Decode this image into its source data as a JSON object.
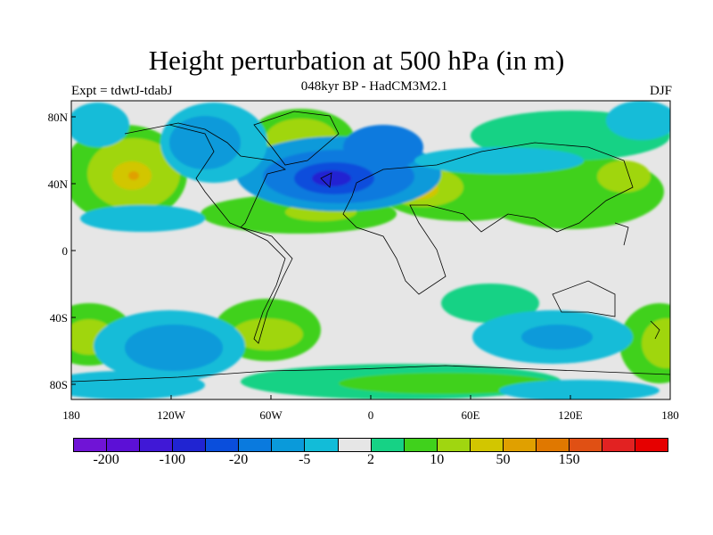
{
  "title": "Height perturbation at 500 hPa (in m)",
  "subtitle": "048kyr BP - HadCM3M2.1",
  "left_label": "Expt = tdwtJ-tdabJ",
  "right_label": "DJF",
  "lat_ticks": [
    "80N",
    "40N",
    "0",
    "40S",
    "80S"
  ],
  "lon_ticks": [
    "180",
    "120W",
    "60W",
    "0",
    "60E",
    "120E",
    "180"
  ],
  "colorbar": {
    "colors": [
      "#7014d6",
      "#5c10d6",
      "#4018d6",
      "#2024d2",
      "#0a4edc",
      "#0a7ade",
      "#0a9ada",
      "#12bcd8",
      "#e6e6e6",
      "#16d285",
      "#40d11c",
      "#a0d610",
      "#d2c600",
      "#e0a000",
      "#e07800",
      "#e05014",
      "#e22222",
      "#e60000"
    ],
    "labels": [
      {
        "text": "-200",
        "boundary": 1
      },
      {
        "text": "-100",
        "boundary": 3
      },
      {
        "text": "-20",
        "boundary": 5
      },
      {
        "text": "-5",
        "boundary": 7
      },
      {
        "text": "2",
        "boundary": 9
      },
      {
        "text": "10",
        "boundary": 11
      },
      {
        "text": "50",
        "boundary": 13
      },
      {
        "text": "150",
        "boundary": 15
      }
    ]
  }
}
